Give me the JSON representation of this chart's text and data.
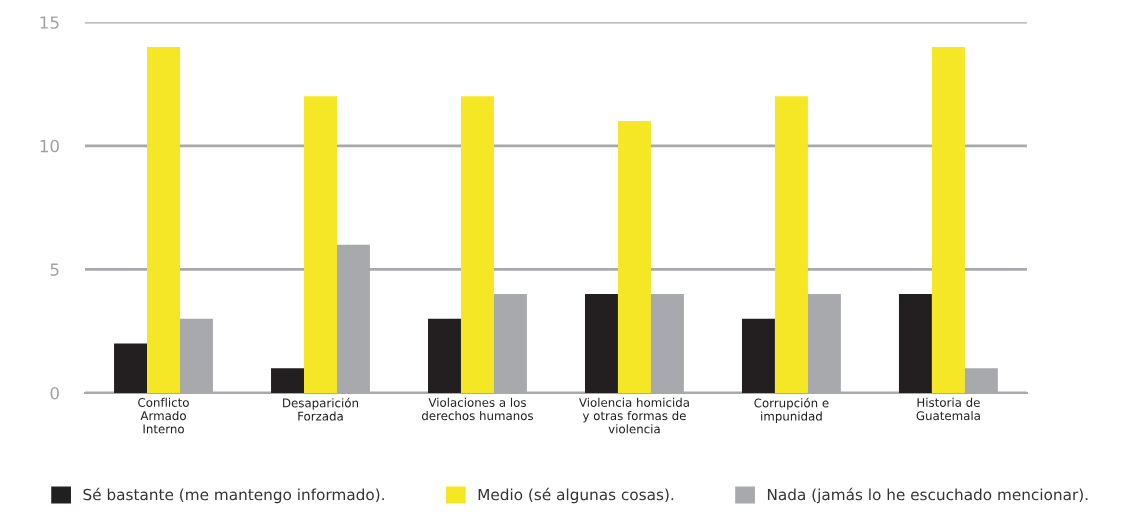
{
  "chart_data": {
    "type": "bar",
    "categories": [
      "Conflicto\nArmado\nInterno",
      "Desaparición\nForzada",
      "Violaciones a los\nderechos humanos",
      "Violencia homicida\ny otras formas de\nviolencia",
      "Corrupción e\nimpunidad",
      "Historia de\nGuatemala"
    ],
    "series": [
      {
        "name": "Sé bastante (me mantengo informado).",
        "color": "#231f20",
        "values": [
          2,
          1,
          3,
          4,
          3,
          4
        ]
      },
      {
        "name": "Medio (sé algunas cosas).",
        "color": "#f5e626",
        "values": [
          14,
          12,
          12,
          11,
          12,
          14
        ]
      },
      {
        "name": "Nada (jamás lo he escuchado mencionar).",
        "color": "#a7a9ac",
        "values": [
          3,
          6,
          4,
          4,
          4,
          1
        ]
      }
    ],
    "ylim": [
      0,
      15
    ],
    "yticks": [
      0,
      5,
      10,
      15
    ],
    "grid": "y",
    "legend": "bottom"
  }
}
